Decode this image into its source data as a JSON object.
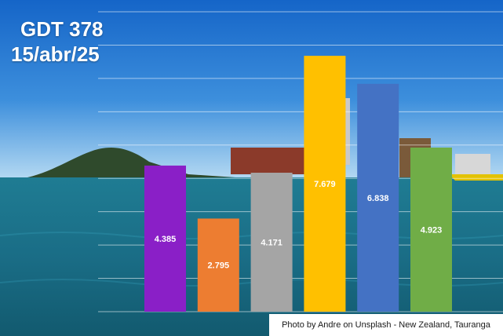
{
  "title": {
    "line1": "GDT 378",
    "line2": "15/abr/25"
  },
  "caption": "Photo by Andre on Unsplash - New Zealand, Tauranga",
  "chart_data": {
    "type": "bar",
    "categories": [
      "",
      "",
      "",
      "",
      "",
      ""
    ],
    "values": [
      4.385,
      2.795,
      4.171,
      7.679,
      6.838,
      4.923
    ],
    "data_labels": [
      "4.385",
      "2.795",
      "4.171",
      "7.679",
      "6.838",
      "4.923"
    ],
    "colors": [
      "#8a1fc7",
      "#ed7d31",
      "#a5a5a5",
      "#ffc000",
      "#4472c4",
      "#70ad47"
    ],
    "ylim": [
      0,
      9
    ],
    "grid": true,
    "title": "",
    "xlabel": "",
    "ylabel": ""
  }
}
